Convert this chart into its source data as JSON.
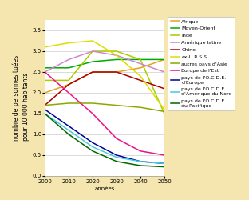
{
  "x": [
    2000,
    2010,
    2020,
    2030,
    2040,
    2050
  ],
  "series": [
    {
      "label": "Afrique",
      "color": "#E8A020",
      "values": [
        2.0,
        2.2,
        2.5,
        2.5,
        2.6,
        2.8
      ]
    },
    {
      "label": "Moyen-Orient",
      "color": "#00AA00",
      "values": [
        2.6,
        2.6,
        2.75,
        2.8,
        2.8,
        2.8
      ]
    },
    {
      "label": "Inde",
      "color": "#AACC00",
      "values": [
        2.3,
        2.3,
        3.0,
        3.0,
        2.8,
        1.5
      ]
    },
    {
      "label": "Amérique latine",
      "color": "#CC88CC",
      "values": [
        2.5,
        2.8,
        3.0,
        2.9,
        2.7,
        2.5
      ]
    },
    {
      "label": "Chine",
      "color": "#AA0000",
      "values": [
        1.7,
        2.2,
        2.5,
        2.5,
        2.3,
        2.1
      ]
    },
    {
      "label": "ex-U.R.S.S.",
      "color": "#DDDD00",
      "values": [
        3.1,
        3.2,
        3.25,
        2.9,
        2.4,
        1.6
      ]
    },
    {
      "label": "autres pays d'Asie",
      "color": "#88AA00",
      "values": [
        1.7,
        1.75,
        1.75,
        1.7,
        1.65,
        1.55
      ]
    },
    {
      "label": "Europe de l'Est",
      "color": "#EE1188",
      "values": [
        2.5,
        2.0,
        1.5,
        0.9,
        0.6,
        0.5
      ]
    },
    {
      "label": "pays de l'O.C.D.E.\nd'Europe",
      "color": "#000099",
      "values": [
        1.6,
        1.2,
        0.8,
        0.5,
        0.35,
        0.3
      ]
    },
    {
      "label": "pays de l'O.C.D.E.\nd'Amérique du Nord",
      "color": "#44CCDD",
      "values": [
        1.5,
        1.1,
        0.7,
        0.45,
        0.35,
        0.3
      ]
    },
    {
      "label": "pays de l'O.C.D.E.\ndu Pacifique",
      "color": "#006600",
      "values": [
        1.5,
        1.0,
        0.6,
        0.35,
        0.25,
        0.22
      ]
    }
  ],
  "xlabel": "années",
  "ylabel": "nombre de personnes tuées\npour 10 000 habitants",
  "xlim": [
    2000,
    2050
  ],
  "ylim": [
    0,
    3.75
  ],
  "yticks": [
    0,
    0.5,
    1.0,
    1.5,
    2.0,
    2.5,
    3.0,
    3.5
  ],
  "xticks": [
    2000,
    2010,
    2020,
    2030,
    2040,
    2050
  ],
  "background_color": "#F5E6B0",
  "plot_background": "#FFFFFF",
  "grid_color": "#CCCCCC",
  "ylabel_fontsize": 5.5,
  "tick_fontsize": 5,
  "legend_fontsize": 4.5,
  "linewidth": 1.1
}
